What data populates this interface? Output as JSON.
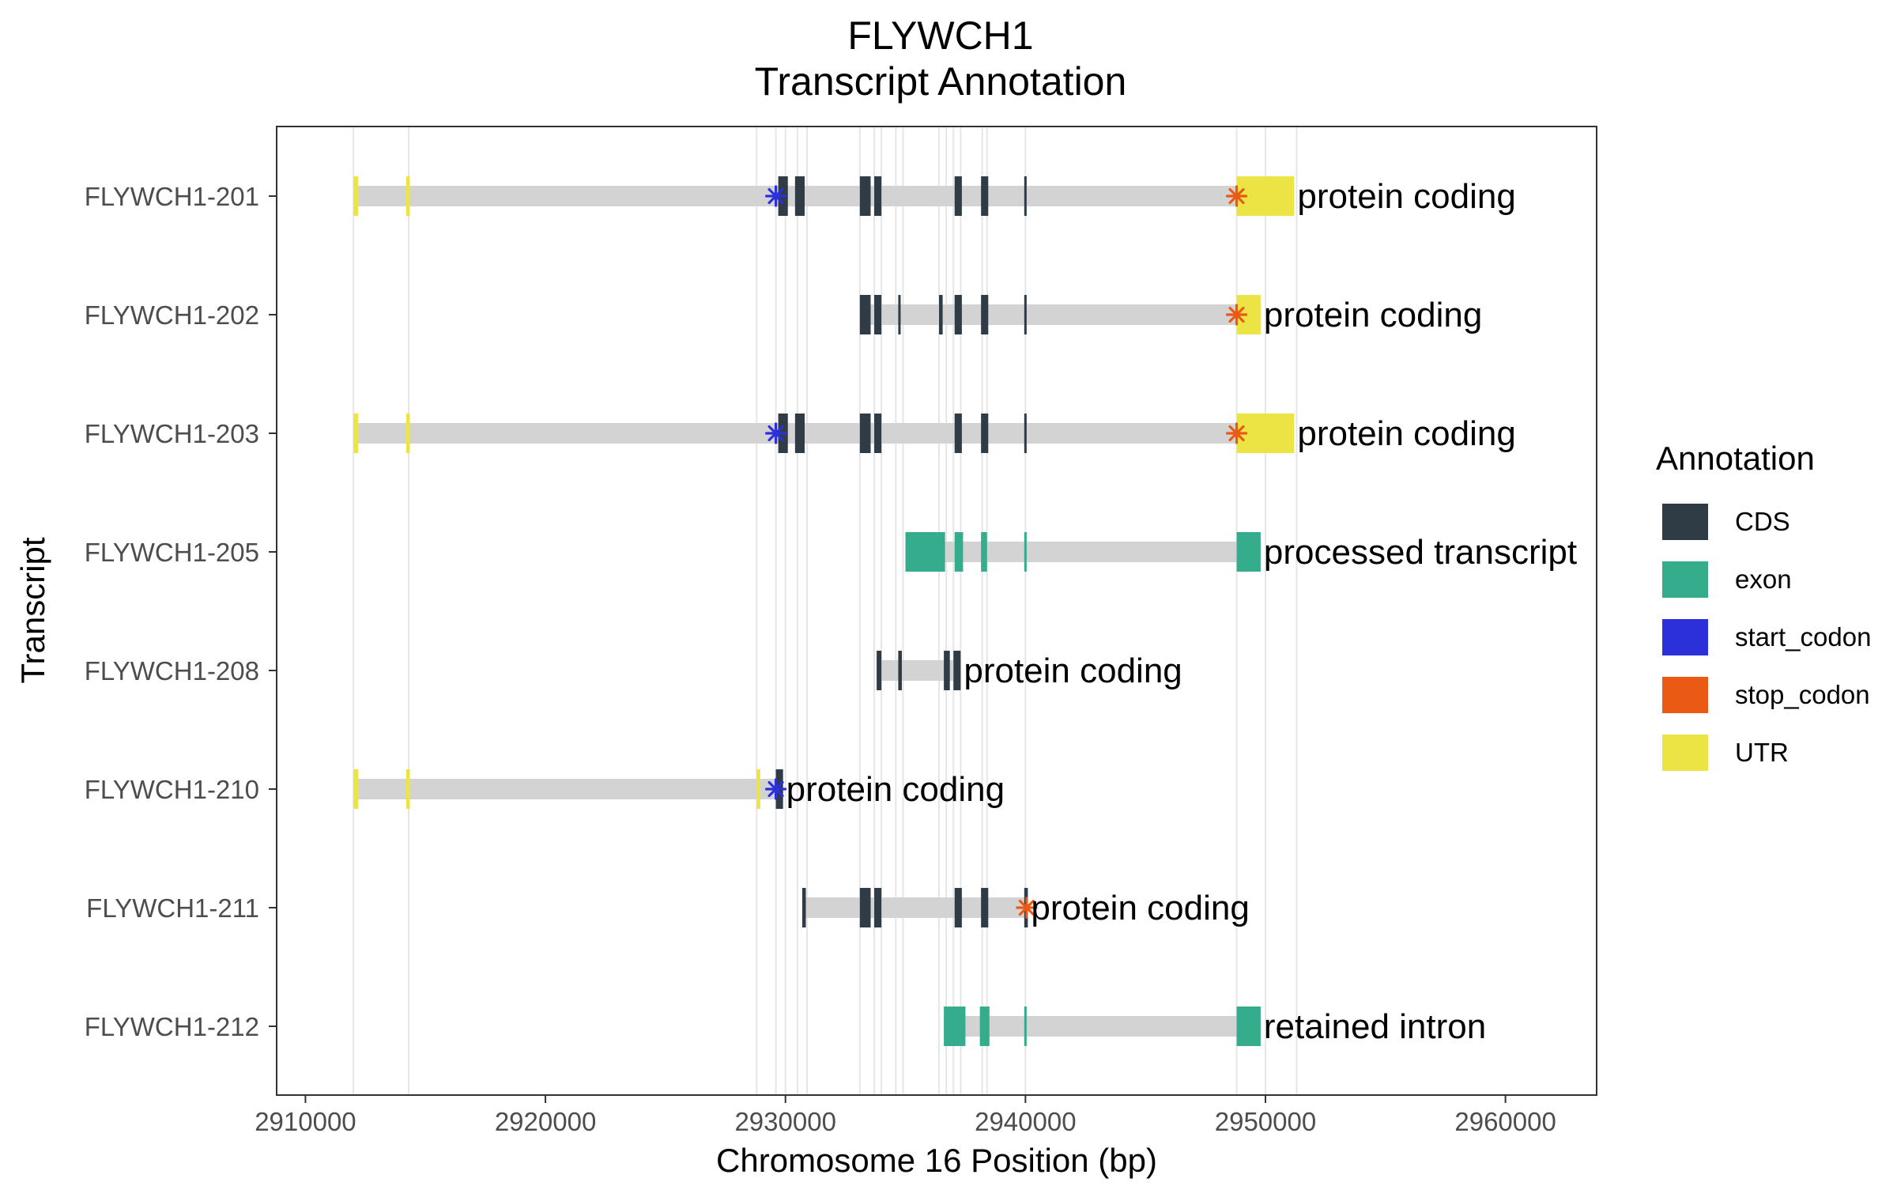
{
  "chart_data": {
    "type": "transcript-annotation",
    "title": "FLYWCH1",
    "subtitle": "Transcript Annotation",
    "xlabel": "Chromosome 16 Position (bp)",
    "ylabel": "Transcript",
    "xlim": [
      2908800,
      2963800
    ],
    "xticks": [
      2910000,
      2920000,
      2930000,
      2940000,
      2950000,
      2960000
    ],
    "xtick_labels": [
      "2910000",
      "2920000",
      "2930000",
      "2940000",
      "2950000",
      "2960000"
    ],
    "grid": "vertical lines at feature boundaries",
    "legend": {
      "title": "Annotation",
      "position": "right",
      "items": [
        {
          "key": "CDS",
          "label": "CDS",
          "color": "#2f3b45"
        },
        {
          "key": "exon",
          "label": "exon",
          "color": "#35ac8c"
        },
        {
          "key": "start_codon",
          "label": "start_codon",
          "color": "#2b30d9"
        },
        {
          "key": "stop_codon",
          "label": "stop_codon",
          "color": "#ea5a14"
        },
        {
          "key": "UTR",
          "label": "UTR",
          "color": "#ece444"
        }
      ]
    },
    "intron_color": "#d3d3d3",
    "gridline_positions": [
      2912000,
      2914300,
      2928800,
      2929600,
      2930000,
      2930500,
      2930900,
      2933100,
      2933700,
      2934000,
      2934600,
      2934900,
      2936400,
      2936700,
      2937000,
      2937300,
      2938200,
      2938400,
      2940000,
      2948800,
      2950000,
      2951300
    ],
    "transcripts": [
      {
        "name": "FLYWCH1-212",
        "biotype": "retained intron",
        "start": 2936600,
        "end": 2949800,
        "features": [
          {
            "type": "exon",
            "start": 2936600,
            "end": 2937500
          },
          {
            "type": "exon",
            "start": 2938100,
            "end": 2938500
          },
          {
            "type": "exon",
            "start": 2939950,
            "end": 2940050
          },
          {
            "type": "exon",
            "start": 2948800,
            "end": 2949800
          }
        ]
      },
      {
        "name": "FLYWCH1-211",
        "biotype": "protein coding",
        "start": 2930700,
        "end": 2940100,
        "features": [
          {
            "type": "CDS",
            "start": 2930700,
            "end": 2930850
          },
          {
            "type": "CDS",
            "start": 2933100,
            "end": 2933550
          },
          {
            "type": "CDS",
            "start": 2933700,
            "end": 2934000
          },
          {
            "type": "CDS",
            "start": 2937050,
            "end": 2937350
          },
          {
            "type": "CDS",
            "start": 2938150,
            "end": 2938450
          },
          {
            "type": "CDS",
            "start": 2939950,
            "end": 2940100
          },
          {
            "type": "stop_codon",
            "start": 2940000,
            "end": 2940100
          }
        ]
      },
      {
        "name": "FLYWCH1-210",
        "biotype": "protein coding",
        "start": 2912000,
        "end": 2929900,
        "features": [
          {
            "type": "UTR",
            "start": 2912000,
            "end": 2912200
          },
          {
            "type": "UTR",
            "start": 2914200,
            "end": 2914350
          },
          {
            "type": "UTR",
            "start": 2928800,
            "end": 2928950
          },
          {
            "type": "CDS",
            "start": 2929600,
            "end": 2929900
          },
          {
            "type": "start_codon",
            "start": 2929550,
            "end": 2929650
          }
        ]
      },
      {
        "name": "FLYWCH1-208",
        "biotype": "protein coding",
        "start": 2933800,
        "end": 2937300,
        "features": [
          {
            "type": "CDS",
            "start": 2933800,
            "end": 2934000
          },
          {
            "type": "CDS",
            "start": 2934700,
            "end": 2934850
          },
          {
            "type": "CDS",
            "start": 2936600,
            "end": 2936850
          },
          {
            "type": "CDS",
            "start": 2937000,
            "end": 2937300
          }
        ]
      },
      {
        "name": "FLYWCH1-205",
        "biotype": "processed transcript",
        "start": 2935000,
        "end": 2949800,
        "features": [
          {
            "type": "exon",
            "start": 2935000,
            "end": 2936650
          },
          {
            "type": "exon",
            "start": 2937050,
            "end": 2937400
          },
          {
            "type": "exon",
            "start": 2938150,
            "end": 2938400
          },
          {
            "type": "exon",
            "start": 2939950,
            "end": 2940050
          },
          {
            "type": "exon",
            "start": 2948800,
            "end": 2949800
          }
        ]
      },
      {
        "name": "FLYWCH1-203",
        "biotype": "protein coding",
        "start": 2912000,
        "end": 2951200,
        "features": [
          {
            "type": "UTR",
            "start": 2912000,
            "end": 2912200
          },
          {
            "type": "UTR",
            "start": 2914200,
            "end": 2914350
          },
          {
            "type": "CDS",
            "start": 2929700,
            "end": 2930100
          },
          {
            "type": "CDS",
            "start": 2930400,
            "end": 2930800
          },
          {
            "type": "CDS",
            "start": 2933100,
            "end": 2933550
          },
          {
            "type": "CDS",
            "start": 2933700,
            "end": 2934000
          },
          {
            "type": "CDS",
            "start": 2937050,
            "end": 2937350
          },
          {
            "type": "CDS",
            "start": 2938150,
            "end": 2938450
          },
          {
            "type": "CDS",
            "start": 2939950,
            "end": 2940050
          },
          {
            "type": "UTR",
            "start": 2948800,
            "end": 2951200
          },
          {
            "type": "start_codon",
            "start": 2929550,
            "end": 2929650
          },
          {
            "type": "stop_codon",
            "start": 2948750,
            "end": 2948850
          }
        ]
      },
      {
        "name": "FLYWCH1-202",
        "biotype": "protein coding",
        "start": 2933100,
        "end": 2949800,
        "features": [
          {
            "type": "CDS",
            "start": 2933100,
            "end": 2933550
          },
          {
            "type": "CDS",
            "start": 2933700,
            "end": 2934000
          },
          {
            "type": "CDS",
            "start": 2934700,
            "end": 2934800
          },
          {
            "type": "CDS",
            "start": 2936400,
            "end": 2936550
          },
          {
            "type": "CDS",
            "start": 2937050,
            "end": 2937350
          },
          {
            "type": "CDS",
            "start": 2938150,
            "end": 2938450
          },
          {
            "type": "CDS",
            "start": 2939950,
            "end": 2940050
          },
          {
            "type": "UTR",
            "start": 2948800,
            "end": 2949800
          },
          {
            "type": "stop_codon",
            "start": 2948750,
            "end": 2948850
          }
        ]
      },
      {
        "name": "FLYWCH1-201",
        "biotype": "protein coding",
        "start": 2912000,
        "end": 2951200,
        "features": [
          {
            "type": "UTR",
            "start": 2912000,
            "end": 2912200
          },
          {
            "type": "UTR",
            "start": 2914200,
            "end": 2914350
          },
          {
            "type": "CDS",
            "start": 2929700,
            "end": 2930100
          },
          {
            "type": "CDS",
            "start": 2930400,
            "end": 2930800
          },
          {
            "type": "CDS",
            "start": 2933100,
            "end": 2933550
          },
          {
            "type": "CDS",
            "start": 2933700,
            "end": 2934000
          },
          {
            "type": "CDS",
            "start": 2937050,
            "end": 2937350
          },
          {
            "type": "CDS",
            "start": 2938150,
            "end": 2938450
          },
          {
            "type": "CDS",
            "start": 2939950,
            "end": 2940050
          },
          {
            "type": "UTR",
            "start": 2948800,
            "end": 2951200
          },
          {
            "type": "start_codon",
            "start": 2929550,
            "end": 2929650
          },
          {
            "type": "stop_codon",
            "start": 2948750,
            "end": 2948850
          }
        ]
      }
    ]
  }
}
